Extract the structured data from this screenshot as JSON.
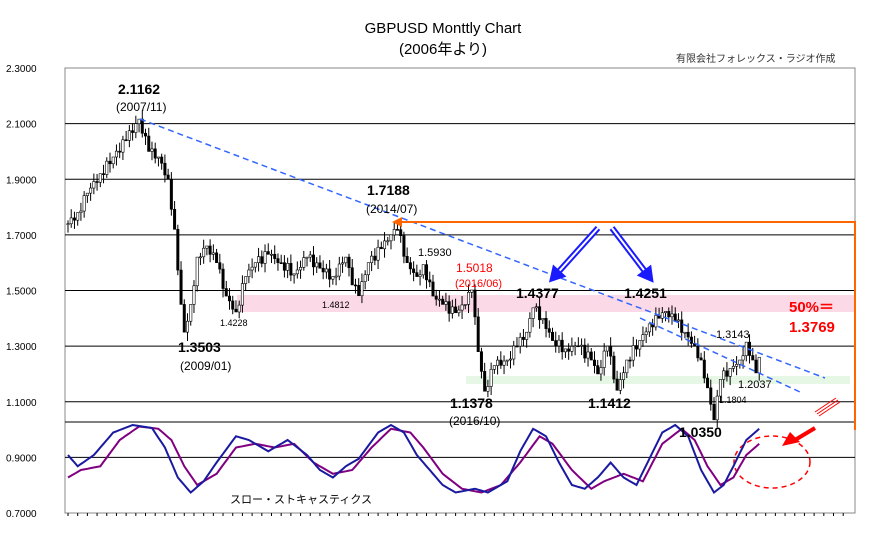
{
  "header": {
    "title": "GBPUSD Monttly Chart",
    "subtitle": "(2006年より)",
    "credit": "有限会社フォレックス・ラジオ作成"
  },
  "chart_data": {
    "type": "candlestick",
    "title": "GBPUSD Monttly Chart",
    "subtitle": "(2006年より)",
    "x_start": "2006/01",
    "x_end": "2023/11",
    "interval": "monthly",
    "ylim": [
      0.7,
      2.3
    ],
    "yticks": [
      "2.3000",
      "2.1000",
      "1.9000",
      "1.7000",
      "1.5000",
      "1.3000",
      "1.1000",
      "0.9000",
      "0.7000"
    ],
    "price_anchors": [
      [
        0,
        1.74
      ],
      [
        3,
        1.78
      ],
      [
        6,
        1.85
      ],
      [
        10,
        1.92
      ],
      [
        14,
        1.98
      ],
      [
        18,
        2.04
      ],
      [
        22,
        2.1162
      ],
      [
        25,
        2.0
      ],
      [
        28,
        1.98
      ],
      [
        31,
        1.9
      ],
      [
        33,
        1.72
      ],
      [
        35,
        1.45
      ],
      [
        36,
        1.3503
      ],
      [
        38,
        1.45
      ],
      [
        40,
        1.62
      ],
      [
        43,
        1.66
      ],
      [
        46,
        1.6
      ],
      [
        49,
        1.48
      ],
      [
        52,
        1.4228
      ],
      [
        55,
        1.55
      ],
      [
        58,
        1.6
      ],
      [
        62,
        1.63
      ],
      [
        66,
        1.6
      ],
      [
        70,
        1.56
      ],
      [
        74,
        1.62
      ],
      [
        78,
        1.58
      ],
      [
        82,
        1.55
      ],
      [
        86,
        1.62
      ],
      [
        88,
        1.52
      ],
      [
        90,
        1.4812
      ],
      [
        93,
        1.6
      ],
      [
        97,
        1.65
      ],
      [
        100,
        1.7
      ],
      [
        102,
        1.7188
      ],
      [
        105,
        1.6
      ],
      [
        108,
        1.55
      ],
      [
        110,
        1.593
      ],
      [
        113,
        1.48
      ],
      [
        116,
        1.45
      ],
      [
        120,
        1.42
      ],
      [
        123,
        1.45
      ],
      [
        125,
        1.5018
      ],
      [
        127,
        1.28
      ],
      [
        129,
        1.1378
      ],
      [
        132,
        1.23
      ],
      [
        136,
        1.25
      ],
      [
        139,
        1.3
      ],
      [
        142,
        1.35
      ],
      [
        144,
        1.4377
      ],
      [
        147,
        1.4
      ],
      [
        150,
        1.32
      ],
      [
        154,
        1.29
      ],
      [
        158,
        1.3
      ],
      [
        162,
        1.25
      ],
      [
        164,
        1.2
      ],
      [
        167,
        1.3
      ],
      [
        170,
        1.1412
      ],
      [
        173,
        1.25
      ],
      [
        177,
        1.32
      ],
      [
        180,
        1.38
      ],
      [
        183,
        1.4
      ],
      [
        185,
        1.4251
      ],
      [
        188,
        1.39
      ],
      [
        191,
        1.35
      ],
      [
        194,
        1.3
      ],
      [
        196,
        1.25
      ],
      [
        198,
        1.15
      ],
      [
        200,
        1.035
      ],
      [
        202,
        1.18
      ],
      [
        205,
        1.22
      ],
      [
        208,
        1.25
      ],
      [
        210,
        1.3143
      ],
      [
        212,
        1.25
      ],
      [
        213,
        1.2037
      ],
      [
        214,
        1.26
      ]
    ],
    "stochastic": {
      "name": "スロー・ストキャスティクス",
      "fast_color": "#1a1aa0",
      "slow_color": "#800080",
      "fast": [
        [
          0,
          60
        ],
        [
          3,
          45
        ],
        [
          8,
          60
        ],
        [
          14,
          90
        ],
        [
          20,
          100
        ],
        [
          26,
          96
        ],
        [
          30,
          70
        ],
        [
          34,
          30
        ],
        [
          38,
          10
        ],
        [
          42,
          25
        ],
        [
          46,
          50
        ],
        [
          52,
          85
        ],
        [
          56,
          80
        ],
        [
          62,
          65
        ],
        [
          68,
          80
        ],
        [
          74,
          60
        ],
        [
          78,
          40
        ],
        [
          82,
          30
        ],
        [
          86,
          45
        ],
        [
          90,
          55
        ],
        [
          96,
          90
        ],
        [
          100,
          100
        ],
        [
          104,
          90
        ],
        [
          108,
          60
        ],
        [
          112,
          40
        ],
        [
          116,
          20
        ],
        [
          120,
          10
        ],
        [
          126,
          15
        ],
        [
          130,
          10
        ],
        [
          136,
          25
        ],
        [
          140,
          65
        ],
        [
          144,
          95
        ],
        [
          148,
          85
        ],
        [
          152,
          50
        ],
        [
          156,
          20
        ],
        [
          160,
          15
        ],
        [
          164,
          30
        ],
        [
          168,
          50
        ],
        [
          172,
          30
        ],
        [
          176,
          20
        ],
        [
          180,
          55
        ],
        [
          184,
          90
        ],
        [
          188,
          100
        ],
        [
          192,
          85
        ],
        [
          196,
          40
        ],
        [
          200,
          10
        ],
        [
          203,
          20
        ],
        [
          206,
          45
        ],
        [
          210,
          80
        ],
        [
          214,
          95
        ]
      ],
      "slow": [
        [
          0,
          30
        ],
        [
          4,
          40
        ],
        [
          10,
          45
        ],
        [
          16,
          80
        ],
        [
          22,
          98
        ],
        [
          28,
          95
        ],
        [
          32,
          80
        ],
        [
          36,
          45
        ],
        [
          40,
          20
        ],
        [
          46,
          35
        ],
        [
          52,
          70
        ],
        [
          58,
          75
        ],
        [
          64,
          70
        ],
        [
          70,
          75
        ],
        [
          76,
          50
        ],
        [
          82,
          35
        ],
        [
          88,
          40
        ],
        [
          94,
          70
        ],
        [
          100,
          95
        ],
        [
          106,
          90
        ],
        [
          110,
          70
        ],
        [
          116,
          35
        ],
        [
          122,
          15
        ],
        [
          128,
          10
        ],
        [
          134,
          20
        ],
        [
          140,
          50
        ],
        [
          146,
          85
        ],
        [
          150,
          75
        ],
        [
          156,
          40
        ],
        [
          162,
          15
        ],
        [
          166,
          25
        ],
        [
          172,
          35
        ],
        [
          178,
          25
        ],
        [
          184,
          75
        ],
        [
          190,
          95
        ],
        [
          194,
          80
        ],
        [
          198,
          45
        ],
        [
          202,
          20
        ],
        [
          206,
          30
        ],
        [
          210,
          60
        ],
        [
          214,
          75
        ]
      ]
    },
    "annotations": {
      "high_2007": "2.1162",
      "high_2007_date": "(2007/11)",
      "low_2009": "1.3503",
      "low_2009_date": "(2009/01)",
      "low_2010": "1.4228",
      "low_2013": "1.4812",
      "high_2014": "1.7188",
      "high_2014_date": "(2014/07)",
      "high_2015": "1.5930",
      "brexit": "1.5018",
      "brexit_date": "(2016/06)",
      "low_2016": "1.1378",
      "low_2016_date": "(2016/10)",
      "high_2018": "1.4377",
      "low_2020": "1.1412",
      "high_2021": "1.4251",
      "low_2022": "1.0350",
      "high_2023": "1.3143",
      "low_2023a": "1.2037",
      "low_2023b": "1.1804",
      "fib_label": "50%＝",
      "fib_value": "1.3769"
    },
    "colors": {
      "candle": "#000000",
      "trendline": "#3366ff",
      "arrow": "#1a1aff",
      "pink_band": "#fcd9e6",
      "green_band": "#e6f7e6",
      "orange": "#ff6600",
      "red": "#ff0000"
    }
  }
}
